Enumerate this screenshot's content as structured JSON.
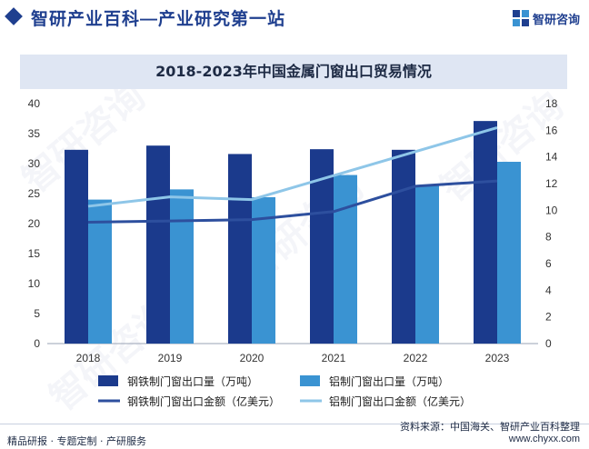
{
  "header": {
    "brand_title": "智研产业百科—产业研究第一站",
    "logo_text": "智研咨询"
  },
  "watermark_text": "智研咨询",
  "colors": {
    "steel_bar": "#1b3a8c",
    "aluminum_bar": "#3a93d2",
    "steel_line": "#2d4f9e",
    "aluminum_line": "#8ec6e8",
    "brand": "#1f3f8f"
  },
  "chart_data": {
    "type": "bar",
    "title": "2018-2023年中国金属门窗出口贸易情况",
    "categories": [
      "2018",
      "2019",
      "2020",
      "2021",
      "2022",
      "2023"
    ],
    "y_left": {
      "min": 0,
      "max": 40,
      "step": 5,
      "ticks": [
        "0",
        "5",
        "10",
        "15",
        "20",
        "25",
        "30",
        "35",
        "40"
      ]
    },
    "y_right": {
      "min": 0,
      "max": 18,
      "step": 2,
      "ticks": [
        "0",
        "2",
        "4",
        "6",
        "8",
        "10",
        "12",
        "14",
        "16",
        "18"
      ]
    },
    "bar_series": [
      {
        "name": "钢铁制门窗出口量（万吨）",
        "values": [
          32.3,
          33.0,
          31.6,
          32.4,
          32.3,
          37.1
        ],
        "axis": "left"
      },
      {
        "name": "铝制门窗出口量（万吨）",
        "values": [
          24.0,
          25.7,
          24.4,
          28.1,
          26.3,
          30.3
        ],
        "axis": "left"
      }
    ],
    "line_series": [
      {
        "name": "钢铁制门窗出口金额（亿美元）",
        "values": [
          9.1,
          9.2,
          9.3,
          9.9,
          11.8,
          12.2
        ],
        "axis": "right"
      },
      {
        "name": "铝制门窗出口金额（亿美元）",
        "values": [
          10.3,
          11.0,
          10.8,
          12.6,
          14.4,
          16.2
        ],
        "axis": "right"
      }
    ],
    "legend_position": "bottom"
  },
  "footer": {
    "source": "资料来源：中国海关、智研产业百科整理",
    "services": "精品研报 · 专题定制 · 产研服务",
    "website": "www.chyxx.com"
  }
}
